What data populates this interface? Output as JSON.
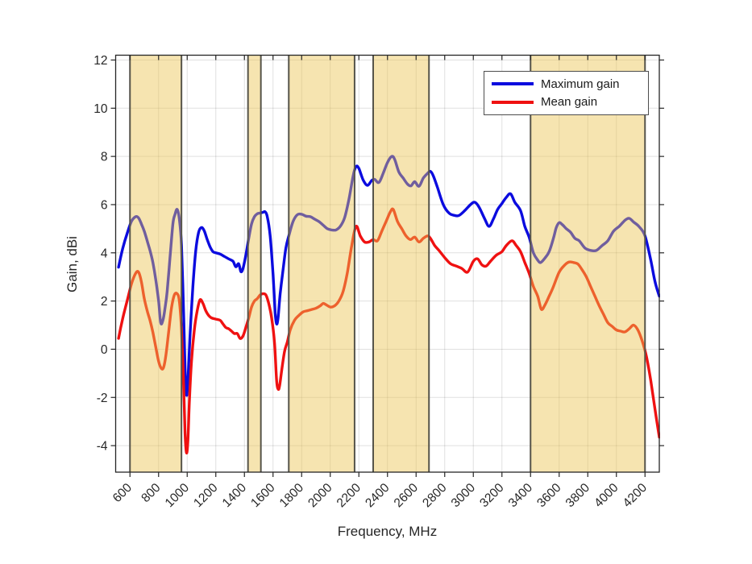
{
  "figure": {
    "background": "#ffffff"
  },
  "chart_data": {
    "type": "line",
    "title": "",
    "xlabel": "Frequency, MHz",
    "ylabel": "Gain, dBi",
    "xlim": [
      500,
      4300
    ],
    "ylim": [
      -5.1,
      12.2
    ],
    "xticks": [
      600,
      800,
      1000,
      1200,
      1400,
      1600,
      1800,
      2000,
      2200,
      2400,
      2600,
      2800,
      3000,
      3200,
      3400,
      3600,
      3800,
      4000,
      4200
    ],
    "yticks": [
      -4,
      -2,
      0,
      2,
      4,
      6,
      8,
      10,
      12
    ],
    "grid": true,
    "legend_position": "top-right",
    "colors": {
      "grid": "rgba(38,38,38,0.14)",
      "axis": "#262626",
      "tick_label": "#262626",
      "band_fill": "rgba(236,195,80,0.45)",
      "band_edge": "#56544a"
    },
    "shaded_bands_mhz": [
      [
        600,
        960
      ],
      [
        1425,
        1515
      ],
      [
        1710,
        2170
      ],
      [
        2300,
        2690
      ],
      [
        3400,
        4200
      ]
    ],
    "series": [
      {
        "name": "Maximum gain",
        "color": "#0b0bdf",
        "x": [
          520,
          550,
          580,
          610,
          640,
          660,
          680,
          700,
          720,
          740,
          760,
          780,
          800,
          815,
          830,
          845,
          860,
          880,
          900,
          915,
          930,
          945,
          960,
          975,
          985,
          995,
          1005,
          1020,
          1040,
          1060,
          1080,
          1100,
          1120,
          1140,
          1160,
          1180,
          1200,
          1230,
          1260,
          1290,
          1320,
          1340,
          1360,
          1375,
          1390,
          1410,
          1430,
          1450,
          1470,
          1490,
          1510,
          1530,
          1545,
          1560,
          1580,
          1600,
          1615,
          1625,
          1635,
          1650,
          1670,
          1690,
          1710,
          1740,
          1770,
          1800,
          1830,
          1860,
          1890,
          1920,
          1950,
          1980,
          2010,
          2040,
          2070,
          2100,
          2130,
          2160,
          2180,
          2200,
          2230,
          2260,
          2290,
          2310,
          2340,
          2370,
          2400,
          2430,
          2450,
          2480,
          2510,
          2540,
          2565,
          2590,
          2620,
          2650,
          2680,
          2700,
          2720,
          2750,
          2790,
          2830,
          2870,
          2900,
          2940,
          2980,
          3010,
          3040,
          3080,
          3110,
          3140,
          3170,
          3200,
          3230,
          3260,
          3290,
          3330,
          3360,
          3390,
          3420,
          3450,
          3470,
          3500,
          3530,
          3560,
          3580,
          3600,
          3620,
          3650,
          3680,
          3710,
          3740,
          3780,
          3820,
          3860,
          3900,
          3940,
          3980,
          4020,
          4060,
          4090,
          4120,
          4160,
          4200,
          4240,
          4270,
          4300
        ],
        "y": [
          3.4,
          4.2,
          4.8,
          5.3,
          5.5,
          5.45,
          5.2,
          4.9,
          4.5,
          4.1,
          3.6,
          2.9,
          2.0,
          1.1,
          1.2,
          1.7,
          2.4,
          3.8,
          5.2,
          5.6,
          5.8,
          5.4,
          4.3,
          1.5,
          -0.8,
          -1.9,
          -1.3,
          0.6,
          2.6,
          4.1,
          4.85,
          5.05,
          4.9,
          4.55,
          4.25,
          4.05,
          4.0,
          3.95,
          3.85,
          3.75,
          3.65,
          3.42,
          3.55,
          3.22,
          3.35,
          3.9,
          4.6,
          5.2,
          5.5,
          5.62,
          5.65,
          5.68,
          5.7,
          5.5,
          4.7,
          3.1,
          1.5,
          1.05,
          1.3,
          2.3,
          3.3,
          4.2,
          4.7,
          5.3,
          5.58,
          5.6,
          5.52,
          5.5,
          5.4,
          5.3,
          5.15,
          5.0,
          4.95,
          4.95,
          5.1,
          5.45,
          6.2,
          7.2,
          7.58,
          7.5,
          7.02,
          6.8,
          7.0,
          7.05,
          6.92,
          7.3,
          7.75,
          8.0,
          7.88,
          7.35,
          7.1,
          6.85,
          6.78,
          6.95,
          6.76,
          7.1,
          7.3,
          7.38,
          7.2,
          6.7,
          6.0,
          5.65,
          5.55,
          5.55,
          5.75,
          6.0,
          6.1,
          5.9,
          5.4,
          5.1,
          5.4,
          5.8,
          6.05,
          6.3,
          6.45,
          6.1,
          5.75,
          5.1,
          4.65,
          4.0,
          3.7,
          3.6,
          3.78,
          4.05,
          4.6,
          5.05,
          5.25,
          5.18,
          5.0,
          4.85,
          4.6,
          4.5,
          4.2,
          4.1,
          4.1,
          4.3,
          4.5,
          4.9,
          5.1,
          5.35,
          5.43,
          5.28,
          5.08,
          4.7,
          3.7,
          2.8,
          2.2
        ]
      },
      {
        "name": "Mean gain",
        "color": "#ef1111",
        "x": [
          520,
          550,
          580,
          610,
          640,
          660,
          680,
          700,
          720,
          740,
          760,
          780,
          800,
          820,
          835,
          850,
          870,
          890,
          910,
          930,
          945,
          960,
          975,
          985,
          995,
          1005,
          1015,
          1030,
          1050,
          1070,
          1090,
          1110,
          1130,
          1150,
          1170,
          1200,
          1230,
          1250,
          1270,
          1290,
          1310,
          1330,
          1350,
          1370,
          1390,
          1410,
          1430,
          1450,
          1470,
          1490,
          1510,
          1530,
          1550,
          1570,
          1590,
          1610,
          1625,
          1635,
          1645,
          1660,
          1680,
          1700,
          1720,
          1750,
          1780,
          1810,
          1840,
          1870,
          1900,
          1930,
          1950,
          1970,
          2000,
          2030,
          2060,
          2090,
          2120,
          2150,
          2180,
          2210,
          2240,
          2270,
          2300,
          2330,
          2360,
          2390,
          2420,
          2440,
          2470,
          2500,
          2530,
          2560,
          2590,
          2620,
          2650,
          2680,
          2700,
          2730,
          2760,
          2800,
          2840,
          2880,
          2920,
          2960,
          3000,
          3030,
          3060,
          3090,
          3120,
          3160,
          3200,
          3230,
          3270,
          3300,
          3330,
          3360,
          3390,
          3420,
          3450,
          3475,
          3500,
          3530,
          3560,
          3600,
          3640,
          3670,
          3700,
          3730,
          3760,
          3790,
          3820,
          3850,
          3880,
          3910,
          3940,
          3970,
          4000,
          4030,
          4060,
          4090,
          4120,
          4150,
          4180,
          4210,
          4240,
          4270,
          4300
        ],
        "y": [
          0.45,
          1.3,
          2.0,
          2.7,
          3.15,
          3.2,
          2.8,
          2.1,
          1.6,
          1.2,
          0.7,
          0.1,
          -0.5,
          -0.8,
          -0.75,
          -0.3,
          0.7,
          1.7,
          2.25,
          2.3,
          2.0,
          0.8,
          -1.5,
          -3.5,
          -4.3,
          -3.8,
          -2.2,
          -0.5,
          0.8,
          1.6,
          2.05,
          1.9,
          1.6,
          1.4,
          1.3,
          1.25,
          1.2,
          1.05,
          0.9,
          0.85,
          0.75,
          0.65,
          0.65,
          0.45,
          0.55,
          0.9,
          1.3,
          1.75,
          2.0,
          2.1,
          2.25,
          2.3,
          2.25,
          1.9,
          1.3,
          0.3,
          -1.3,
          -1.65,
          -1.55,
          -0.9,
          -0.1,
          0.3,
          0.8,
          1.2,
          1.4,
          1.55,
          1.6,
          1.65,
          1.7,
          1.8,
          1.9,
          1.85,
          1.75,
          1.8,
          2.0,
          2.4,
          3.2,
          4.3,
          5.1,
          4.7,
          4.45,
          4.45,
          4.55,
          4.5,
          4.9,
          5.3,
          5.7,
          5.8,
          5.3,
          5.0,
          4.7,
          4.55,
          4.65,
          4.45,
          4.6,
          4.7,
          4.6,
          4.3,
          4.1,
          3.8,
          3.55,
          3.45,
          3.35,
          3.2,
          3.65,
          3.75,
          3.5,
          3.45,
          3.65,
          3.9,
          4.05,
          4.3,
          4.5,
          4.3,
          4.05,
          3.6,
          3.15,
          2.6,
          2.2,
          1.66,
          1.83,
          2.2,
          2.6,
          3.2,
          3.5,
          3.62,
          3.6,
          3.54,
          3.3,
          3.0,
          2.6,
          2.2,
          1.8,
          1.45,
          1.1,
          0.95,
          0.8,
          0.75,
          0.72,
          0.85,
          1.0,
          0.8,
          0.35,
          -0.3,
          -1.3,
          -2.5,
          -3.65
        ]
      }
    ]
  }
}
